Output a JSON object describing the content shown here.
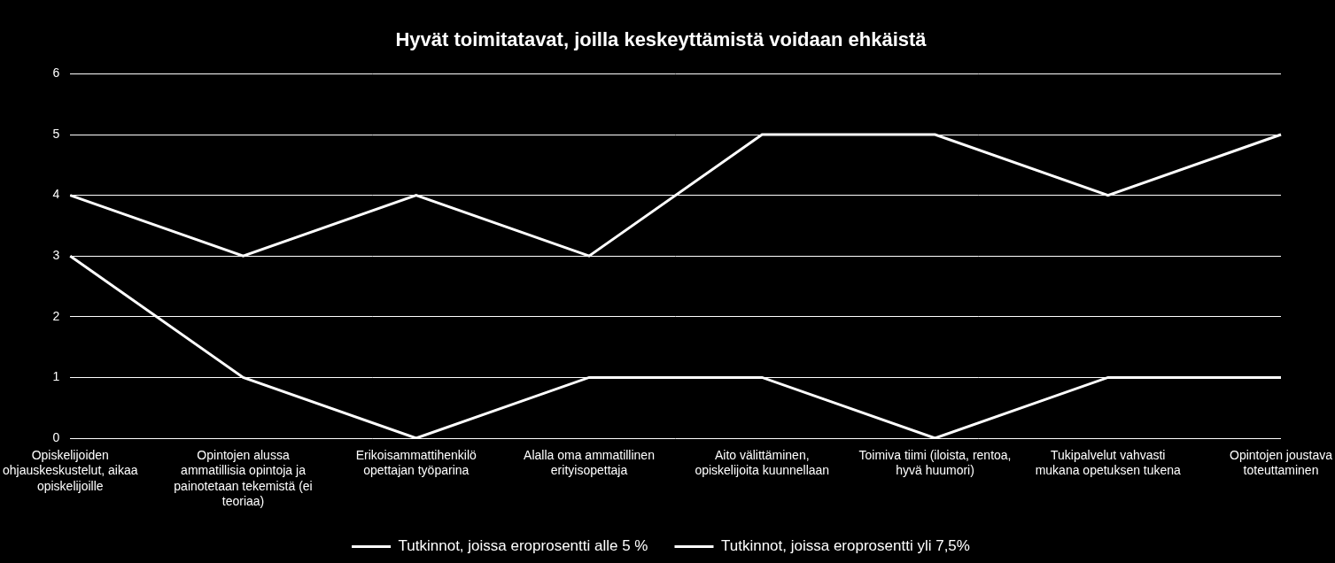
{
  "chart_data": {
    "type": "line",
    "title": "Hyvät toimitatavat, joilla keskeyttämistä voidaan ehkäistä",
    "categories": [
      "Opiskelijoiden ohjauskeskustelut, aikaa opiskelijoille",
      "Opintojen alussa ammatillisia opintoja ja painotetaan tekemistä (ei teoriaa)",
      "Erikoisammattihenkilö opettajan työparina",
      "Alalla oma ammatillinen erityisopettaja",
      "Aito välittäminen, opiskelijoita kuunnellaan",
      "Toimiva tiimi (iloista, rentoa, hyvä huumori)",
      "Tukipalvelut vahvasti mukana opetuksen tukena",
      "Opintojen joustava toteuttaminen"
    ],
    "series": [
      {
        "name": "Tutkinnot, joissa eroprosentti alle 5 %",
        "color": "#ffffff",
        "values": [
          4,
          3,
          4,
          3,
          5,
          5,
          4,
          5
        ]
      },
      {
        "name": "Tutkinnot, joissa eroprosentti yli 7,5%",
        "color": "#ffffff",
        "values": [
          3,
          1,
          0,
          1,
          1,
          0,
          1,
          1
        ]
      }
    ],
    "ylim": [
      0,
      6
    ],
    "yticks": [
      0,
      1,
      2,
      3,
      4,
      5,
      6
    ],
    "grid": true,
    "legend": "bottom",
    "marker": "none",
    "line_style": "solid"
  }
}
